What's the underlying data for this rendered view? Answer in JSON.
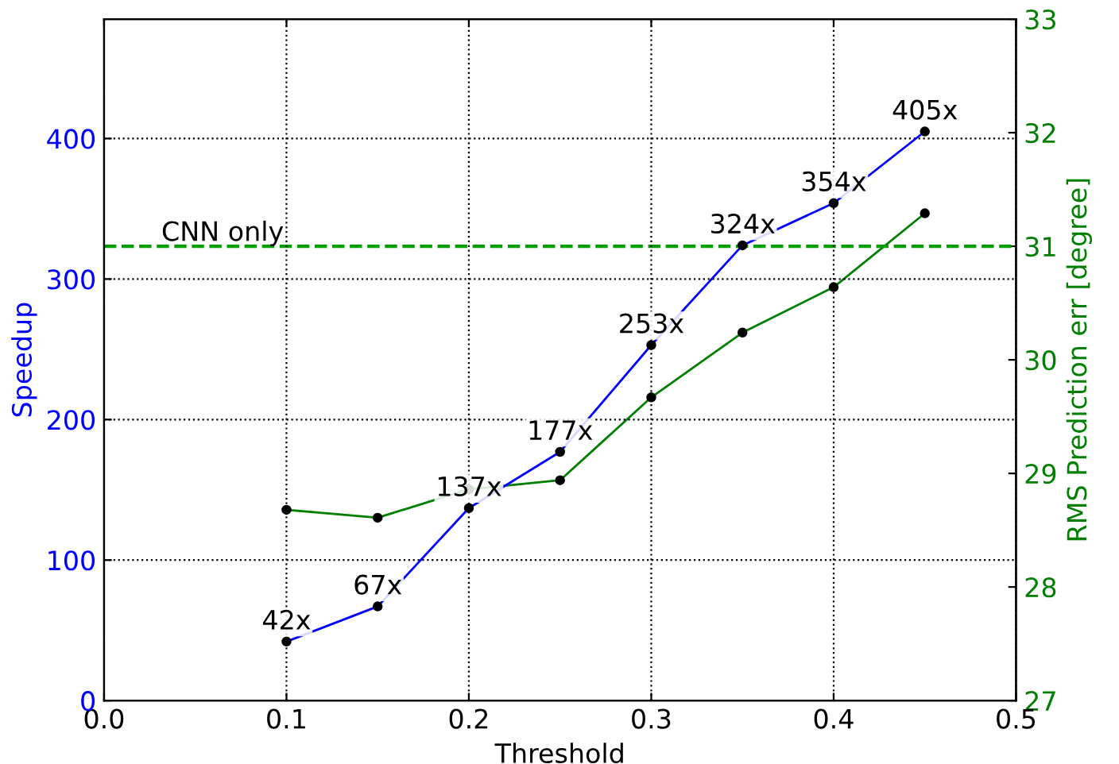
{
  "chart_data": {
    "type": "line",
    "xlabel": "Threshold",
    "ylabel": "Speedup",
    "y2label": "RMS Prediction err [degree]",
    "x": [
      0.1,
      0.15,
      0.2,
      0.25,
      0.3,
      0.35,
      0.4,
      0.45
    ],
    "series": [
      {
        "color": "#0000ff",
        "values": [
          42,
          67,
          137,
          177,
          253,
          324,
          354,
          405
        ],
        "value_labels": [
          "42x",
          "67x",
          "137x",
          "177x",
          "253x",
          "324x",
          "354x",
          "405x"
        ]
      },
      {
        "color": "#007f00",
        "axis": "y2",
        "values": [
          28.68,
          28.61,
          28.86,
          28.94,
          29.67,
          30.24,
          30.64,
          31.29
        ]
      }
    ],
    "xlim": [
      0.0,
      0.5
    ],
    "xticks": [
      {
        "value": 0.0,
        "label": "0.0"
      },
      0.1,
      0.2,
      0.3,
      0.4,
      0.5
    ],
    "ylim": [
      0,
      485
    ],
    "yticks": [
      0,
      100,
      200,
      300,
      400
    ],
    "y2lim": [
      27,
      33
    ],
    "y2ticks": [
      27,
      28,
      29,
      30,
      31,
      32,
      33
    ],
    "ref_lines": [
      {
        "axis": "y2",
        "value": 31.0,
        "label": "CNN only",
        "color": "#00a000",
        "line_style": "dashed"
      }
    ],
    "grid": true,
    "marker": "circle",
    "line_style": "solid"
  }
}
